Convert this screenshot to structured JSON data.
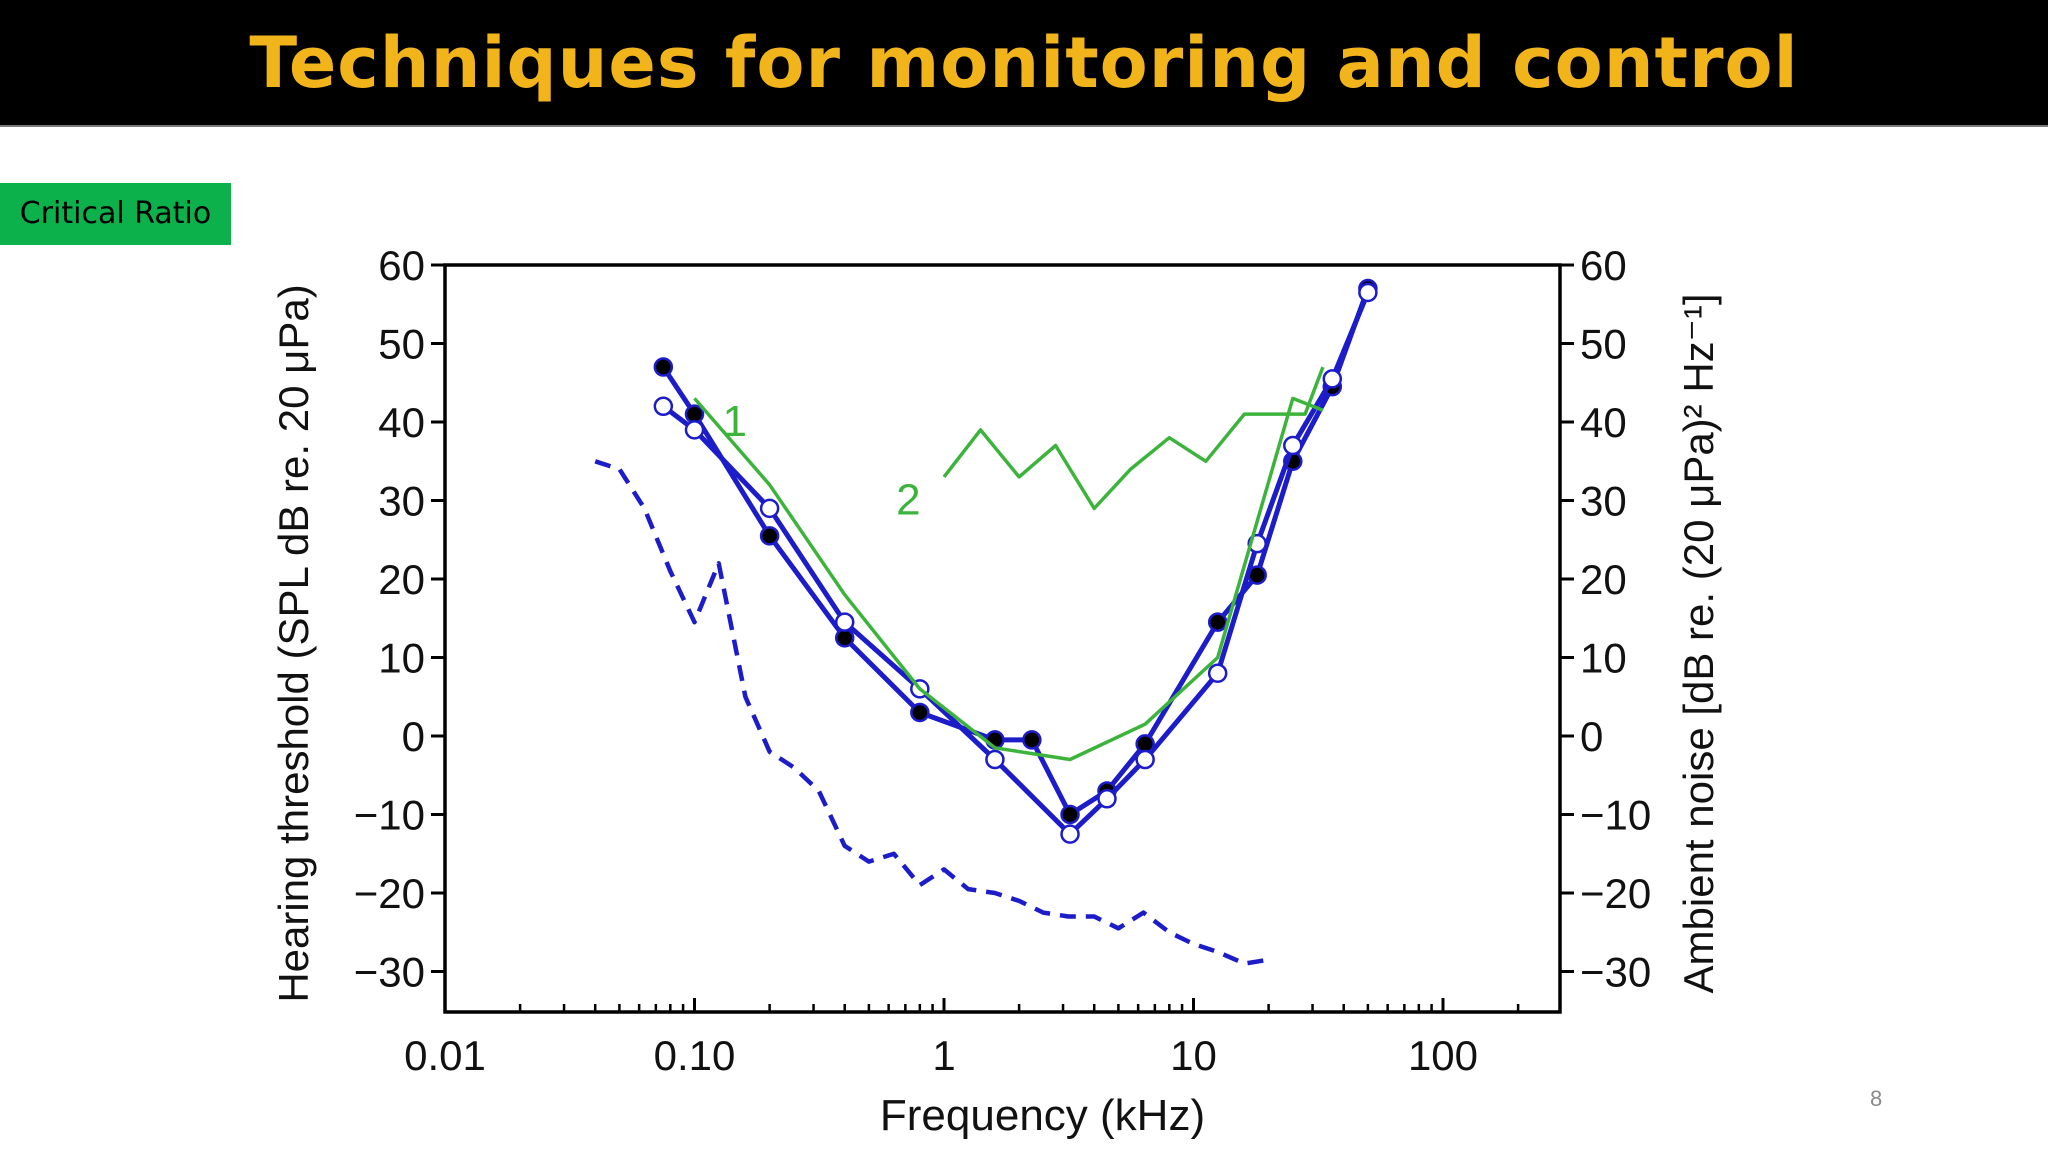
{
  "slide": {
    "title": "Techniques for monitoring and control",
    "tag_label": "Critical Ratio",
    "page_number": "8"
  },
  "colors": {
    "title_bg": "#000000",
    "title_text": "#f2b41b",
    "tag_bg": "#0cb14b",
    "threshold_blue": "#1c1cc8",
    "ratio_green": "#3cb43c"
  },
  "chart_data": {
    "type": "line",
    "x_scale": "log",
    "xlabel": "Frequency (kHz)",
    "ylabel": "Hearing threshold (SPL dB re. 20 μPa)",
    "y2label": "Ambient noise [dB re. (20 μPa)² Hz⁻¹]",
    "xlim": [
      0.01,
      300
    ],
    "ylim": [
      -35,
      60
    ],
    "x_ticks": [
      {
        "value": 0.01,
        "label": "0.01"
      },
      {
        "value": 0.1,
        "label": "0.10"
      },
      {
        "value": 1,
        "label": "1"
      },
      {
        "value": 10,
        "label": "10"
      },
      {
        "value": 100,
        "label": "100"
      }
    ],
    "y_ticks": [
      {
        "value": 60,
        "label": "60"
      },
      {
        "value": 50,
        "label": "50"
      },
      {
        "value": 40,
        "label": "40"
      },
      {
        "value": 30,
        "label": "30"
      },
      {
        "value": 20,
        "label": "20"
      },
      {
        "value": 10,
        "label": "10"
      },
      {
        "value": 0,
        "label": "0"
      },
      {
        "value": -10,
        "label": "−10"
      },
      {
        "value": -20,
        "label": "−20"
      },
      {
        "value": -30,
        "label": "−30"
      }
    ],
    "series": [
      {
        "style": "solid-blue-filled-markers",
        "points": [
          [
            0.075,
            47
          ],
          [
            0.1,
            41
          ],
          [
            0.2,
            25.5
          ],
          [
            0.4,
            12.5
          ],
          [
            0.8,
            3
          ],
          [
            1.6,
            -0.5
          ],
          [
            2.25,
            -0.5
          ],
          [
            3.2,
            -10
          ],
          [
            4.5,
            -7
          ],
          [
            6.4,
            -1
          ],
          [
            12.5,
            14.5
          ],
          [
            18,
            20.5
          ],
          [
            25,
            35
          ],
          [
            36,
            44.5
          ],
          [
            50,
            57
          ]
        ]
      },
      {
        "style": "solid-blue-open-markers",
        "points": [
          [
            0.075,
            42
          ],
          [
            0.1,
            39
          ],
          [
            0.2,
            29
          ],
          [
            0.4,
            14.5
          ],
          [
            0.8,
            6
          ],
          [
            1.6,
            -3
          ],
          [
            3.2,
            -12.5
          ],
          [
            4.5,
            -8
          ],
          [
            6.4,
            -3
          ],
          [
            12.5,
            8
          ],
          [
            18,
            24.5
          ],
          [
            25,
            37
          ],
          [
            36,
            45.5
          ],
          [
            50,
            56.5
          ]
        ]
      },
      {
        "name": "1",
        "style": "solid-green",
        "points": [
          [
            0.1,
            43
          ],
          [
            0.2,
            32
          ],
          [
            0.4,
            18
          ],
          [
            0.8,
            6
          ],
          [
            1.6,
            -1.5
          ],
          [
            3.2,
            -3
          ],
          [
            6.4,
            1.5
          ],
          [
            12.5,
            10
          ],
          [
            25,
            43
          ],
          [
            33,
            41.5
          ]
        ]
      },
      {
        "name": "2",
        "style": "solid-green",
        "points": [
          [
            1.0,
            33
          ],
          [
            1.4,
            39
          ],
          [
            2.0,
            33
          ],
          [
            2.8,
            37
          ],
          [
            4.0,
            29
          ],
          [
            5.6,
            34
          ],
          [
            8.0,
            38
          ],
          [
            11.2,
            35
          ],
          [
            16,
            41
          ],
          [
            22.4,
            41
          ],
          [
            28,
            41
          ],
          [
            33,
            47
          ]
        ]
      },
      {
        "style": "dashed-blue",
        "points": [
          [
            0.04,
            35
          ],
          [
            0.05,
            34
          ],
          [
            0.063,
            29
          ],
          [
            0.08,
            21
          ],
          [
            0.1,
            14.5
          ],
          [
            0.125,
            22
          ],
          [
            0.16,
            5
          ],
          [
            0.2,
            -2
          ],
          [
            0.25,
            -4
          ],
          [
            0.315,
            -7
          ],
          [
            0.4,
            -14
          ],
          [
            0.5,
            -16
          ],
          [
            0.63,
            -15
          ],
          [
            0.8,
            -19
          ],
          [
            1.0,
            -17
          ],
          [
            1.25,
            -19.5
          ],
          [
            1.6,
            -20
          ],
          [
            2.0,
            -21
          ],
          [
            2.5,
            -22.5
          ],
          [
            3.15,
            -23
          ],
          [
            4.0,
            -23
          ],
          [
            5.0,
            -24.5
          ],
          [
            6.3,
            -22.5
          ],
          [
            8.0,
            -25
          ],
          [
            10,
            -26.5
          ],
          [
            12.5,
            -27.5
          ],
          [
            16,
            -29
          ],
          [
            20,
            -28.5
          ]
        ]
      }
    ],
    "annotations": [
      {
        "text": "1",
        "x": 0.145,
        "y": 40
      },
      {
        "text": "2",
        "x": 0.72,
        "y": 30
      }
    ]
  }
}
